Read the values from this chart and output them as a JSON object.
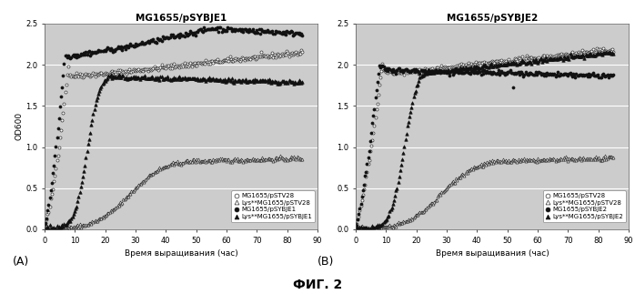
{
  "title_A": "MG1655/pSYBJE1",
  "title_B": "MG1655/pSYBJE2",
  "xlabel": "Время выращивания (час)",
  "ylabel": "OD600",
  "label_A": "(A)",
  "label_B": "(B)",
  "fig_label": "ФИГ. 2",
  "xlim": [
    0,
    90
  ],
  "ylim": [
    0,
    2.5
  ],
  "yticks": [
    0.0,
    0.5,
    1.0,
    1.5,
    2.0,
    2.5
  ],
  "xticks": [
    0,
    10,
    20,
    30,
    40,
    50,
    60,
    70,
    80,
    90
  ],
  "legend_A": [
    "MG1655/pSTV28",
    "Lys**MG1655/pSTV28",
    "MG1655/pSYBJE1",
    "Lys**MG1655/pSYBJE1"
  ],
  "legend_B": [
    "MG1655/pSTV28",
    "Lys**MG1655/pSTV28",
    "MG1655/pSYBJE2",
    "Lys**MG1655/pSYBJE2"
  ],
  "bg_color": "#cccccc",
  "grid_color": "#ffffff",
  "fig_bg": "#ffffff"
}
